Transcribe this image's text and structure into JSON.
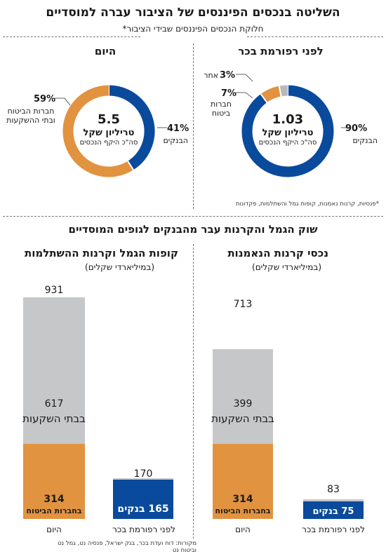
{
  "header": {
    "title": "השליטה בנכסים הפיננסים של הציבור עברה למוסדיים",
    "subtitle": "חלוקת הנכסים הפיננסים שבידי הציבור*"
  },
  "colors": {
    "banks": "#0a4a9c",
    "institutions": "#e19340",
    "other": "#b8b9bc",
    "bars_gray": "#c6c7c9"
  },
  "chart_data": [
    {
      "type": "pie",
      "title": "לפני רפורמת בכר",
      "center": {
        "value": "1.03",
        "unit": "טריליון שקל",
        "note": "סה\"כ היקף הנכסים"
      },
      "slices": [
        {
          "pct_label": "90%",
          "label": "הבנקים",
          "value": 90,
          "color": "#0a4a9c"
        },
        {
          "pct_label": "7%",
          "label": "חברות ביטוח",
          "value": 7,
          "color": "#e19340"
        },
        {
          "pct_label": "3%",
          "label": "אחר",
          "value": 3,
          "color": "#b8b9bc"
        }
      ]
    },
    {
      "type": "pie",
      "title": "היום",
      "center": {
        "value": "5.5",
        "unit": "טריליון שקל",
        "note": "סה\"כ היקף הנכסים"
      },
      "slices": [
        {
          "pct_label": "41%",
          "label": "הבנקים",
          "value": 41,
          "color": "#0a4a9c"
        },
        {
          "pct_label": "59%",
          "label": "חברות הביטוח ובתי ההשקעות",
          "value": 59,
          "color": "#e19340"
        }
      ]
    },
    {
      "type": "bar",
      "title": "נכסי קרנות הנאמנות",
      "subtitle": "(במיליארדי שקלים)",
      "categories": [
        "לפני רפורמת בכר",
        "היום"
      ],
      "series": [
        {
          "name": "בנקים",
          "values": [
            75,
            0
          ],
          "color": "#0a4a9c"
        },
        {
          "name": "חברות הביטוח",
          "values": [
            0,
            314
          ],
          "color": "#e19340"
        },
        {
          "name": "בתי השקעות",
          "values": [
            8,
            399
          ],
          "color": "#c6c7c9"
        }
      ],
      "totals": [
        83,
        713
      ],
      "ylim": [
        0,
        931
      ]
    },
    {
      "type": "bar",
      "title": "קופות הגמל וקרנות ההשתלמות",
      "subtitle": "(במיליארדי שקלים)",
      "categories": [
        "לפני רפורמת בכר",
        "היום"
      ],
      "series": [
        {
          "name": "בנקים",
          "values": [
            165,
            0
          ],
          "color": "#0a4a9c"
        },
        {
          "name": "חברות הביטוח",
          "values": [
            0,
            314
          ],
          "color": "#e19340"
        },
        {
          "name": "בתי השקעות",
          "values": [
            5,
            617
          ],
          "color": "#c6c7c9"
        }
      ],
      "totals": [
        170,
        931
      ],
      "ylim": [
        0,
        931
      ]
    }
  ],
  "notes": {
    "footnote": "*פנסיות, קרנות נאמנות, קופות גמל והשתלמות, פקדונות",
    "section2_title": "שוק הגמל והקרנות עבר מהבנקים לגופים המוסדיים",
    "sources": "מקורות: דוח ועדת בכר, בנק ישראל, פנסיה נט, גמל נט וביטוח נט"
  },
  "bar_labels": {
    "banks_75": "75 בנקים",
    "banks_165": "165 בנקים",
    "ins_314": "314",
    "ins_label": "בחברות הביטוח",
    "inv_label": "בבתי השקעות",
    "inv_399": "399",
    "inv_617": "617",
    "total_83": "83",
    "total_713": "713",
    "total_170": "170",
    "total_931": "931",
    "x_before": "לפני רפורמת בכר",
    "x_today": "היום"
  }
}
